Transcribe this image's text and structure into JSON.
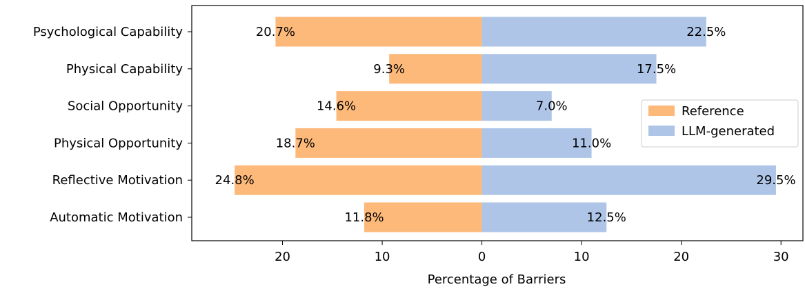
{
  "chart_data": {
    "type": "bar",
    "orientation": "horizontal-diverging",
    "categories": [
      "Psychological Capability",
      "Physical Capability",
      "Social Opportunity",
      "Physical Opportunity",
      "Reflective Motivation",
      "Automatic Motivation"
    ],
    "series": [
      {
        "name": "Reference",
        "direction": "left",
        "color": "#fdb97a",
        "values": [
          20.7,
          9.3,
          14.6,
          18.7,
          24.8,
          11.8
        ],
        "labels": [
          "20.7%",
          "9.3%",
          "14.6%",
          "18.7%",
          "24.8%",
          "11.8%"
        ]
      },
      {
        "name": "LLM-generated",
        "direction": "right",
        "color": "#aec5e8",
        "values": [
          22.5,
          17.5,
          7.0,
          11.0,
          29.5,
          12.5
        ],
        "labels": [
          "22.5%",
          "17.5%",
          "7.0%",
          "11.0%",
          "29.5%",
          "12.5%"
        ]
      }
    ],
    "xlabel": "Percentage of Barriers",
    "xlim": [
      -29.1,
      32.2
    ],
    "xticks": [
      -20,
      -10,
      0,
      10,
      20,
      30
    ],
    "xtick_labels": [
      "20",
      "10",
      "0",
      "10",
      "20",
      "30"
    ],
    "legend_position": "right",
    "grid": false
  }
}
